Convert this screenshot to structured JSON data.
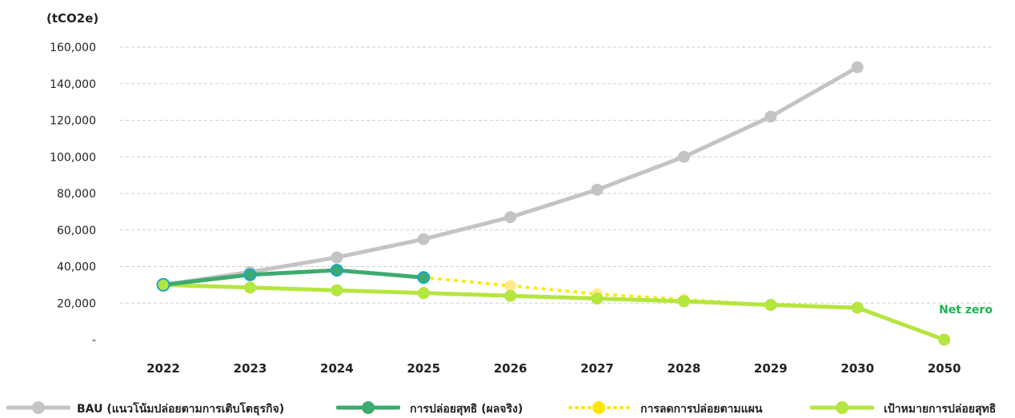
{
  "colors": {
    "bau": "#c4c4c4",
    "actual": "#3dab6f",
    "actual_marker": "#1aa6c9",
    "plan": "#ffe600",
    "target": "#b5e53f",
    "netzero": "#1db34f"
  },
  "annotation": "Net zero",
  "chart_data": {
    "type": "line",
    "ylabel": "(tCO2e)",
    "ylim": [
      0,
      160000
    ],
    "yticks": [
      "-",
      "20,000",
      "40,000",
      "60,000",
      "80,000",
      "100,000",
      "120,000",
      "140,000",
      "160,000"
    ],
    "categories": [
      "2022",
      "2023",
      "2024",
      "2025",
      "2026",
      "2027",
      "2028",
      "2029",
      "2030",
      "2050"
    ],
    "grid": true,
    "legend_position": "bottom",
    "series": [
      {
        "name": "BAU (แนวโน้มปล่อยตามการเติบโตธุรกิจ)",
        "style": "solid",
        "values": [
          30000,
          37000,
          45000,
          55000,
          67000,
          82000,
          100000,
          122000,
          149000,
          null
        ]
      },
      {
        "name": "การปล่อยสุทธิ (ผลจริง)",
        "style": "solid",
        "values": [
          30000,
          35500,
          38000,
          34000,
          null,
          null,
          null,
          null,
          null,
          null
        ]
      },
      {
        "name": "การลดการปล่อยตามแผน",
        "style": "dotted",
        "values": [
          null,
          null,
          null,
          34000,
          29500,
          25000,
          22000,
          19000,
          null,
          null
        ]
      },
      {
        "name": "เป้าหมายการปล่อยสุทธิ",
        "style": "solid",
        "values": [
          30000,
          28500,
          27000,
          25500,
          24000,
          22500,
          21000,
          19000,
          17500,
          0
        ]
      }
    ]
  }
}
